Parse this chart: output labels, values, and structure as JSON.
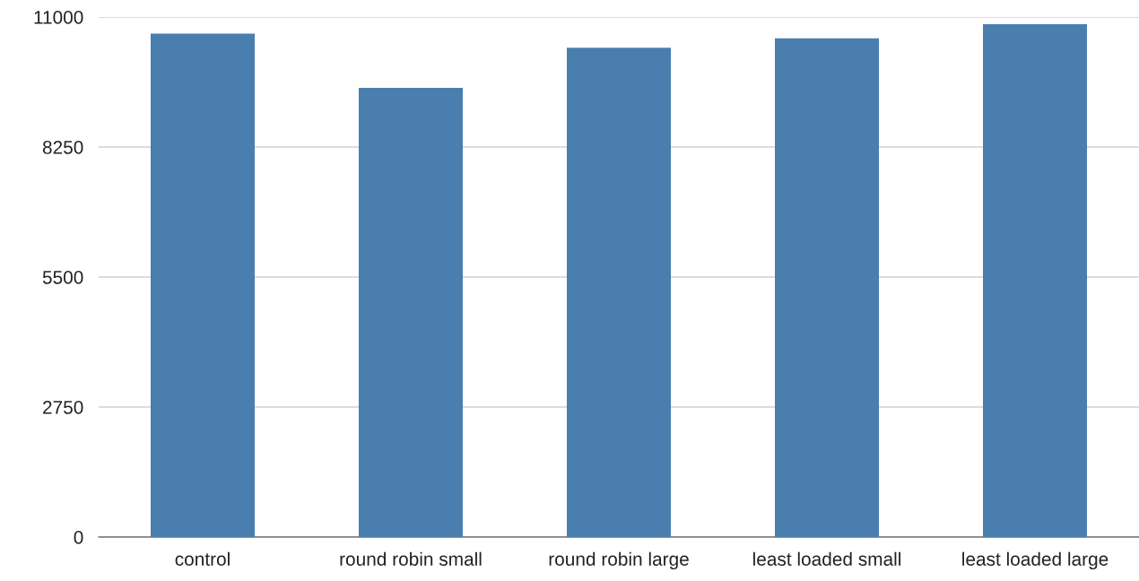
{
  "chart_data": {
    "type": "bar",
    "categories": [
      "control",
      "round robin small",
      "round robin large",
      "least loaded small",
      "least loaded large"
    ],
    "values": [
      10650,
      9500,
      10350,
      10550,
      10850
    ],
    "color": "#4a7eae",
    "ylim": [
      0,
      11000
    ],
    "yticks": [
      0,
      2750,
      5500,
      8250,
      11000
    ],
    "grid": "y"
  }
}
